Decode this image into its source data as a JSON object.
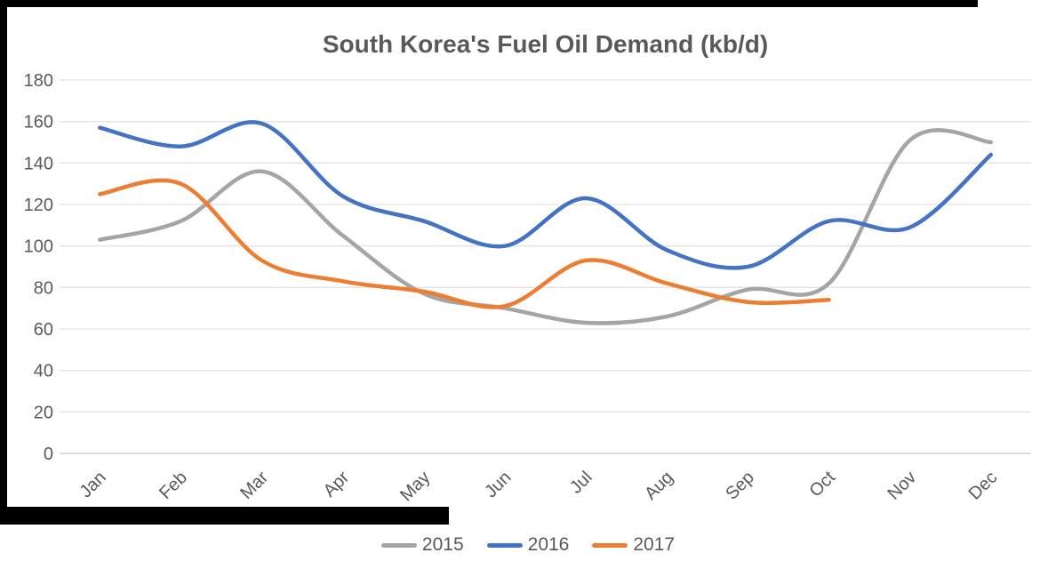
{
  "frame_color": "#000000",
  "chart_data": {
    "type": "line",
    "title": "South Korea's Fuel Oil Demand (kb/d)",
    "categories": [
      "Jan",
      "Feb",
      "Mar",
      "Apr",
      "May",
      "Jun",
      "Jul",
      "Aug",
      "Sep",
      "Oct",
      "Nov",
      "Dec"
    ],
    "y_ticks": [
      0,
      20,
      40,
      60,
      80,
      100,
      120,
      140,
      160,
      180
    ],
    "ylim": [
      0,
      180
    ],
    "grid": true,
    "smooth": true,
    "legend_position": "bottom",
    "series": [
      {
        "name": "2015",
        "color": "#A5A5A5",
        "values": [
          103,
          112,
          136,
          105,
          77,
          70,
          63,
          66,
          79,
          82,
          151,
          150
        ]
      },
      {
        "name": "2016",
        "color": "#4472C4",
        "values": [
          157,
          148,
          159,
          124,
          112,
          100,
          123,
          98,
          90,
          112,
          109,
          144
        ]
      },
      {
        "name": "2017",
        "color": "#ED7D31",
        "values": [
          125,
          130,
          93,
          83,
          78,
          71,
          93,
          82,
          73,
          74,
          null,
          null
        ]
      }
    ],
    "text_color": "#595959",
    "gridline_color": "#E3E3E3",
    "axisline_color": "#C9C9C9"
  }
}
